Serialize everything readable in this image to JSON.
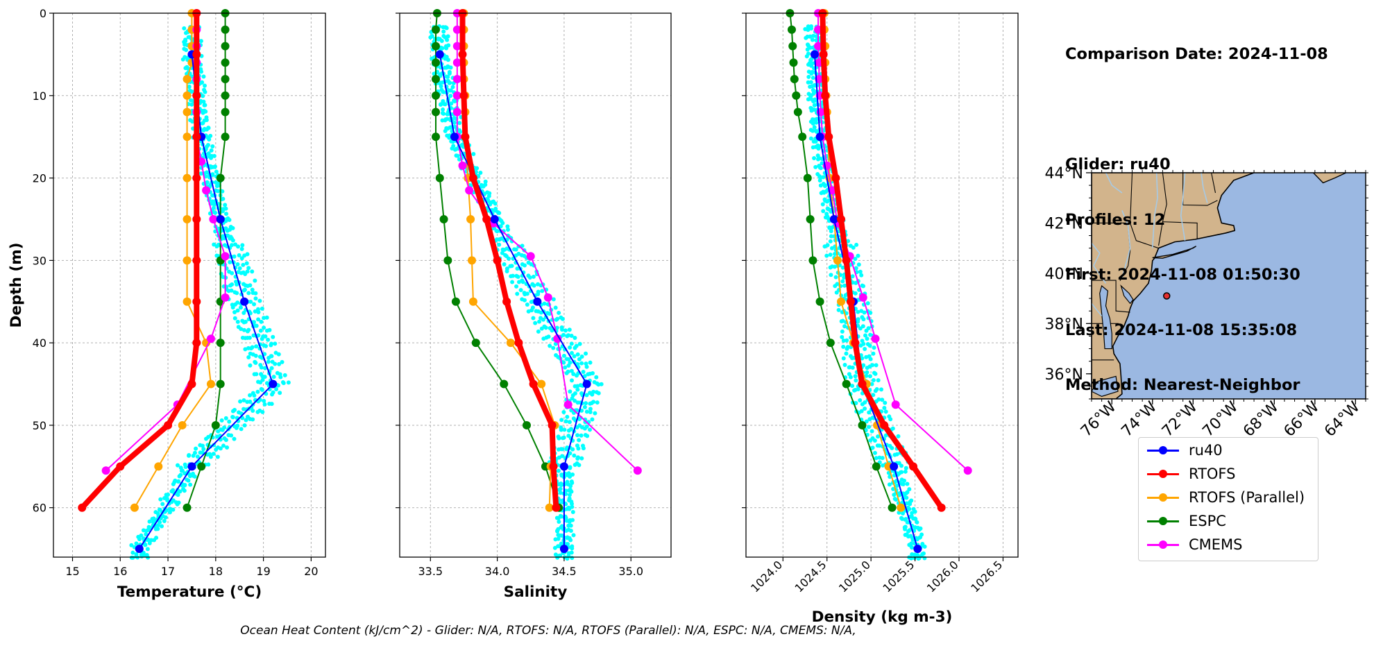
{
  "info": {
    "comparison_date": "Comparison Date: 2024-11-08",
    "glider": "Glider: ru40",
    "profiles": "Profiles: 12",
    "first": "First: 2024-11-08 01:50:30",
    "last": "Last: 2024-11-08 15:35:08",
    "method": "Method: Nearest-Neighbor"
  },
  "footer": "Ocean Heat Content (kJ/cm^2) - Glider: N/A,  RTOFS: N/A,  RTOFS (Parallel): N/A,  ESPC: N/A,  CMEMS: N/A,",
  "colors": {
    "glider_scatter": "#00FFFF",
    "ru40": "#0000FF",
    "RTOFS": "#FF0000",
    "RTOFS_parallel": "#FFA500",
    "ESPC": "#008000",
    "CMEMS": "#FF00FF",
    "land": "#D2B48C",
    "ocean": "#9BB8E2",
    "rivers": "#A6CAE6"
  },
  "legend": [
    {
      "label": "ru40",
      "color": "#0000FF"
    },
    {
      "label": "RTOFS",
      "color": "#FF0000"
    },
    {
      "label": "RTOFS (Parallel)",
      "color": "#FFA500"
    },
    {
      "label": "ESPC",
      "color": "#008000"
    },
    {
      "label": "CMEMS",
      "color": "#FF00FF"
    }
  ],
  "map": {
    "lat_labels": [
      "44°N",
      "42°N",
      "40°N",
      "38°N",
      "36°N"
    ],
    "lat_values": [
      44,
      42,
      40,
      38,
      36
    ],
    "lon_labels": [
      "76°W",
      "74°W",
      "72°W",
      "70°W",
      "68°W",
      "66°W",
      "64°W"
    ],
    "lon_values": [
      -76,
      -74,
      -72,
      -70,
      -68,
      -66,
      -64
    ],
    "extent": {
      "lon_min": -77,
      "lon_max": -63.5,
      "lat_min": 35,
      "lat_max": 44
    },
    "glider_position": {
      "lon": -73.3,
      "lat": 39.1
    }
  },
  "chart_data": [
    {
      "type": "line",
      "xlabel": "Temperature (°C)",
      "ylabel": "Depth (m)",
      "xlim": [
        14.6,
        20.3
      ],
      "ylim": [
        66,
        0
      ],
      "xticks": [
        15,
        16,
        17,
        18,
        19,
        20
      ],
      "yticks": [
        0,
        10,
        20,
        30,
        40,
        50,
        60
      ],
      "grid": true,
      "series": [
        {
          "name": "ru40",
          "depth": [
            5,
            15,
            25,
            35,
            45,
            55,
            65
          ],
          "values": [
            17.5,
            17.7,
            18.1,
            18.6,
            19.2,
            17.5,
            16.4
          ]
        },
        {
          "name": "RTOFS",
          "depth": [
            0,
            5,
            10,
            15,
            20,
            25,
            30,
            35,
            40,
            45,
            50,
            55,
            60
          ],
          "values": [
            17.6,
            17.6,
            17.6,
            17.6,
            17.6,
            17.6,
            17.6,
            17.6,
            17.6,
            17.5,
            17.0,
            16.0,
            15.2
          ]
        },
        {
          "name": "RTOFS (Parallel)",
          "depth": [
            0,
            2,
            4,
            6,
            8,
            10,
            12,
            15,
            20,
            25,
            30,
            35,
            40,
            45,
            50,
            55,
            60
          ],
          "values": [
            17.5,
            17.5,
            17.5,
            17.5,
            17.4,
            17.4,
            17.4,
            17.4,
            17.4,
            17.4,
            17.4,
            17.4,
            17.8,
            17.9,
            17.3,
            16.8,
            16.3
          ]
        },
        {
          "name": "ESPC",
          "depth": [
            0,
            2,
            4,
            6,
            8,
            10,
            12,
            15,
            20,
            25,
            30,
            35,
            40,
            45,
            50,
            55,
            60
          ],
          "values": [
            18.2,
            18.2,
            18.2,
            18.2,
            18.2,
            18.2,
            18.2,
            18.2,
            18.1,
            18.1,
            18.1,
            18.1,
            18.1,
            18.1,
            18.0,
            17.7,
            17.4
          ]
        },
        {
          "name": "CMEMS",
          "depth": [
            0,
            2,
            4,
            6,
            8,
            10,
            12,
            15,
            18,
            21.5,
            25,
            29.5,
            34.5,
            39.5,
            47.5,
            55.5
          ],
          "values": [
            17.6,
            17.6,
            17.6,
            17.6,
            17.6,
            17.6,
            17.6,
            17.6,
            17.7,
            17.8,
            17.95,
            18.2,
            18.2,
            17.9,
            17.2,
            15.7
          ]
        }
      ]
    },
    {
      "type": "line",
      "xlabel": "Salinity",
      "ylim": [
        66,
        0
      ],
      "xlim": [
        33.27,
        35.3
      ],
      "xticks": [
        33.5,
        34.0,
        34.5,
        35.0
      ],
      "xtick_labels": [
        "33.5",
        "34.0",
        "34.5",
        "35.0"
      ],
      "grid": true,
      "series": [
        {
          "name": "ru40",
          "depth": [
            5,
            15,
            25,
            35,
            45,
            55,
            65
          ],
          "values": [
            33.57,
            33.68,
            33.98,
            34.3,
            34.67,
            34.5,
            34.5
          ]
        },
        {
          "name": "RTOFS",
          "depth": [
            0,
            5,
            10,
            15,
            20,
            25,
            30,
            35,
            40,
            45,
            50,
            55,
            60
          ],
          "values": [
            33.74,
            33.74,
            33.75,
            33.76,
            33.82,
            33.92,
            34.0,
            34.07,
            34.16,
            34.27,
            34.41,
            34.42,
            34.44
          ]
        },
        {
          "name": "RTOFS (Parallel)",
          "depth": [
            0,
            2,
            4,
            6,
            8,
            10,
            12,
            15,
            20,
            25,
            30,
            35,
            40,
            45,
            50,
            55,
            60
          ],
          "values": [
            33.75,
            33.75,
            33.75,
            33.75,
            33.75,
            33.76,
            33.76,
            33.76,
            33.78,
            33.8,
            33.81,
            33.82,
            34.1,
            34.33,
            34.43,
            34.4,
            34.39
          ]
        },
        {
          "name": "ESPC",
          "depth": [
            0,
            2,
            4,
            6,
            8,
            10,
            12,
            15,
            20,
            25,
            30,
            35,
            40,
            45,
            50,
            55,
            60
          ],
          "values": [
            33.55,
            33.54,
            33.54,
            33.54,
            33.54,
            33.54,
            33.54,
            33.54,
            33.57,
            33.6,
            33.63,
            33.69,
            33.84,
            34.05,
            34.22,
            34.36,
            34.46
          ]
        },
        {
          "name": "CMEMS",
          "depth": [
            0,
            2,
            4,
            6,
            8,
            10,
            12,
            15,
            18.5,
            21.5,
            25.5,
            29.5,
            34.5,
            39.5,
            47.5,
            55.5
          ],
          "values": [
            33.7,
            33.7,
            33.7,
            33.7,
            33.7,
            33.7,
            33.7,
            33.7,
            33.74,
            33.79,
            33.97,
            34.25,
            34.38,
            34.45,
            34.53,
            35.05
          ]
        }
      ]
    },
    {
      "type": "line",
      "xlabel": "Density (kg m-3)",
      "ylim": [
        66,
        0
      ],
      "xlim": [
        1023.58,
        1026.67
      ],
      "xticks": [
        1024.0,
        1024.5,
        1025.0,
        1025.5,
        1026.0,
        1026.5
      ],
      "xtick_labels": [
        "1024.0",
        "1024.5",
        "1025.0",
        "1025.5",
        "1026.0",
        "1026.5"
      ],
      "grid": true,
      "series": [
        {
          "name": "ru40",
          "depth": [
            5,
            15,
            25,
            35,
            45,
            55,
            65
          ],
          "values": [
            1024.36,
            1024.42,
            1024.58,
            1024.8,
            1024.9,
            1025.26,
            1025.53
          ]
        },
        {
          "name": "RTOFS",
          "depth": [
            0,
            5,
            10,
            15,
            20,
            25,
            30,
            35,
            40,
            45,
            50,
            55,
            60
          ],
          "values": [
            1024.45,
            1024.46,
            1024.48,
            1024.52,
            1024.6,
            1024.66,
            1024.72,
            1024.77,
            1024.82,
            1024.9,
            1025.15,
            1025.48,
            1025.8
          ]
        },
        {
          "name": "RTOFS (Parallel)",
          "depth": [
            0,
            2,
            4,
            6,
            8,
            10,
            12,
            15,
            20,
            25,
            30,
            35,
            40,
            45,
            50,
            55,
            60
          ],
          "values": [
            1024.47,
            1024.47,
            1024.48,
            1024.48,
            1024.48,
            1024.49,
            1024.5,
            1024.51,
            1024.53,
            1024.58,
            1024.62,
            1024.66,
            1024.8,
            1024.95,
            1025.07,
            1025.2,
            1025.34
          ]
        },
        {
          "name": "ESPC",
          "depth": [
            0,
            2,
            4,
            6,
            8,
            10,
            12,
            15,
            20,
            25,
            30,
            35,
            40,
            45,
            50,
            55,
            60
          ],
          "values": [
            1024.08,
            1024.1,
            1024.11,
            1024.12,
            1024.13,
            1024.15,
            1024.17,
            1024.22,
            1024.28,
            1024.31,
            1024.34,
            1024.42,
            1024.54,
            1024.72,
            1024.9,
            1025.06,
            1025.24
          ]
        },
        {
          "name": "CMEMS",
          "depth": [
            0,
            2,
            4,
            6,
            8,
            10,
            12,
            15,
            18.5,
            21.5,
            25.5,
            29.5,
            34.5,
            39.5,
            47.5,
            55.5
          ],
          "values": [
            1024.4,
            1024.4,
            1024.4,
            1024.41,
            1024.41,
            1024.42,
            1024.43,
            1024.45,
            1024.5,
            1024.56,
            1024.62,
            1024.76,
            1024.91,
            1025.05,
            1025.28,
            1026.1
          ]
        }
      ]
    }
  ]
}
